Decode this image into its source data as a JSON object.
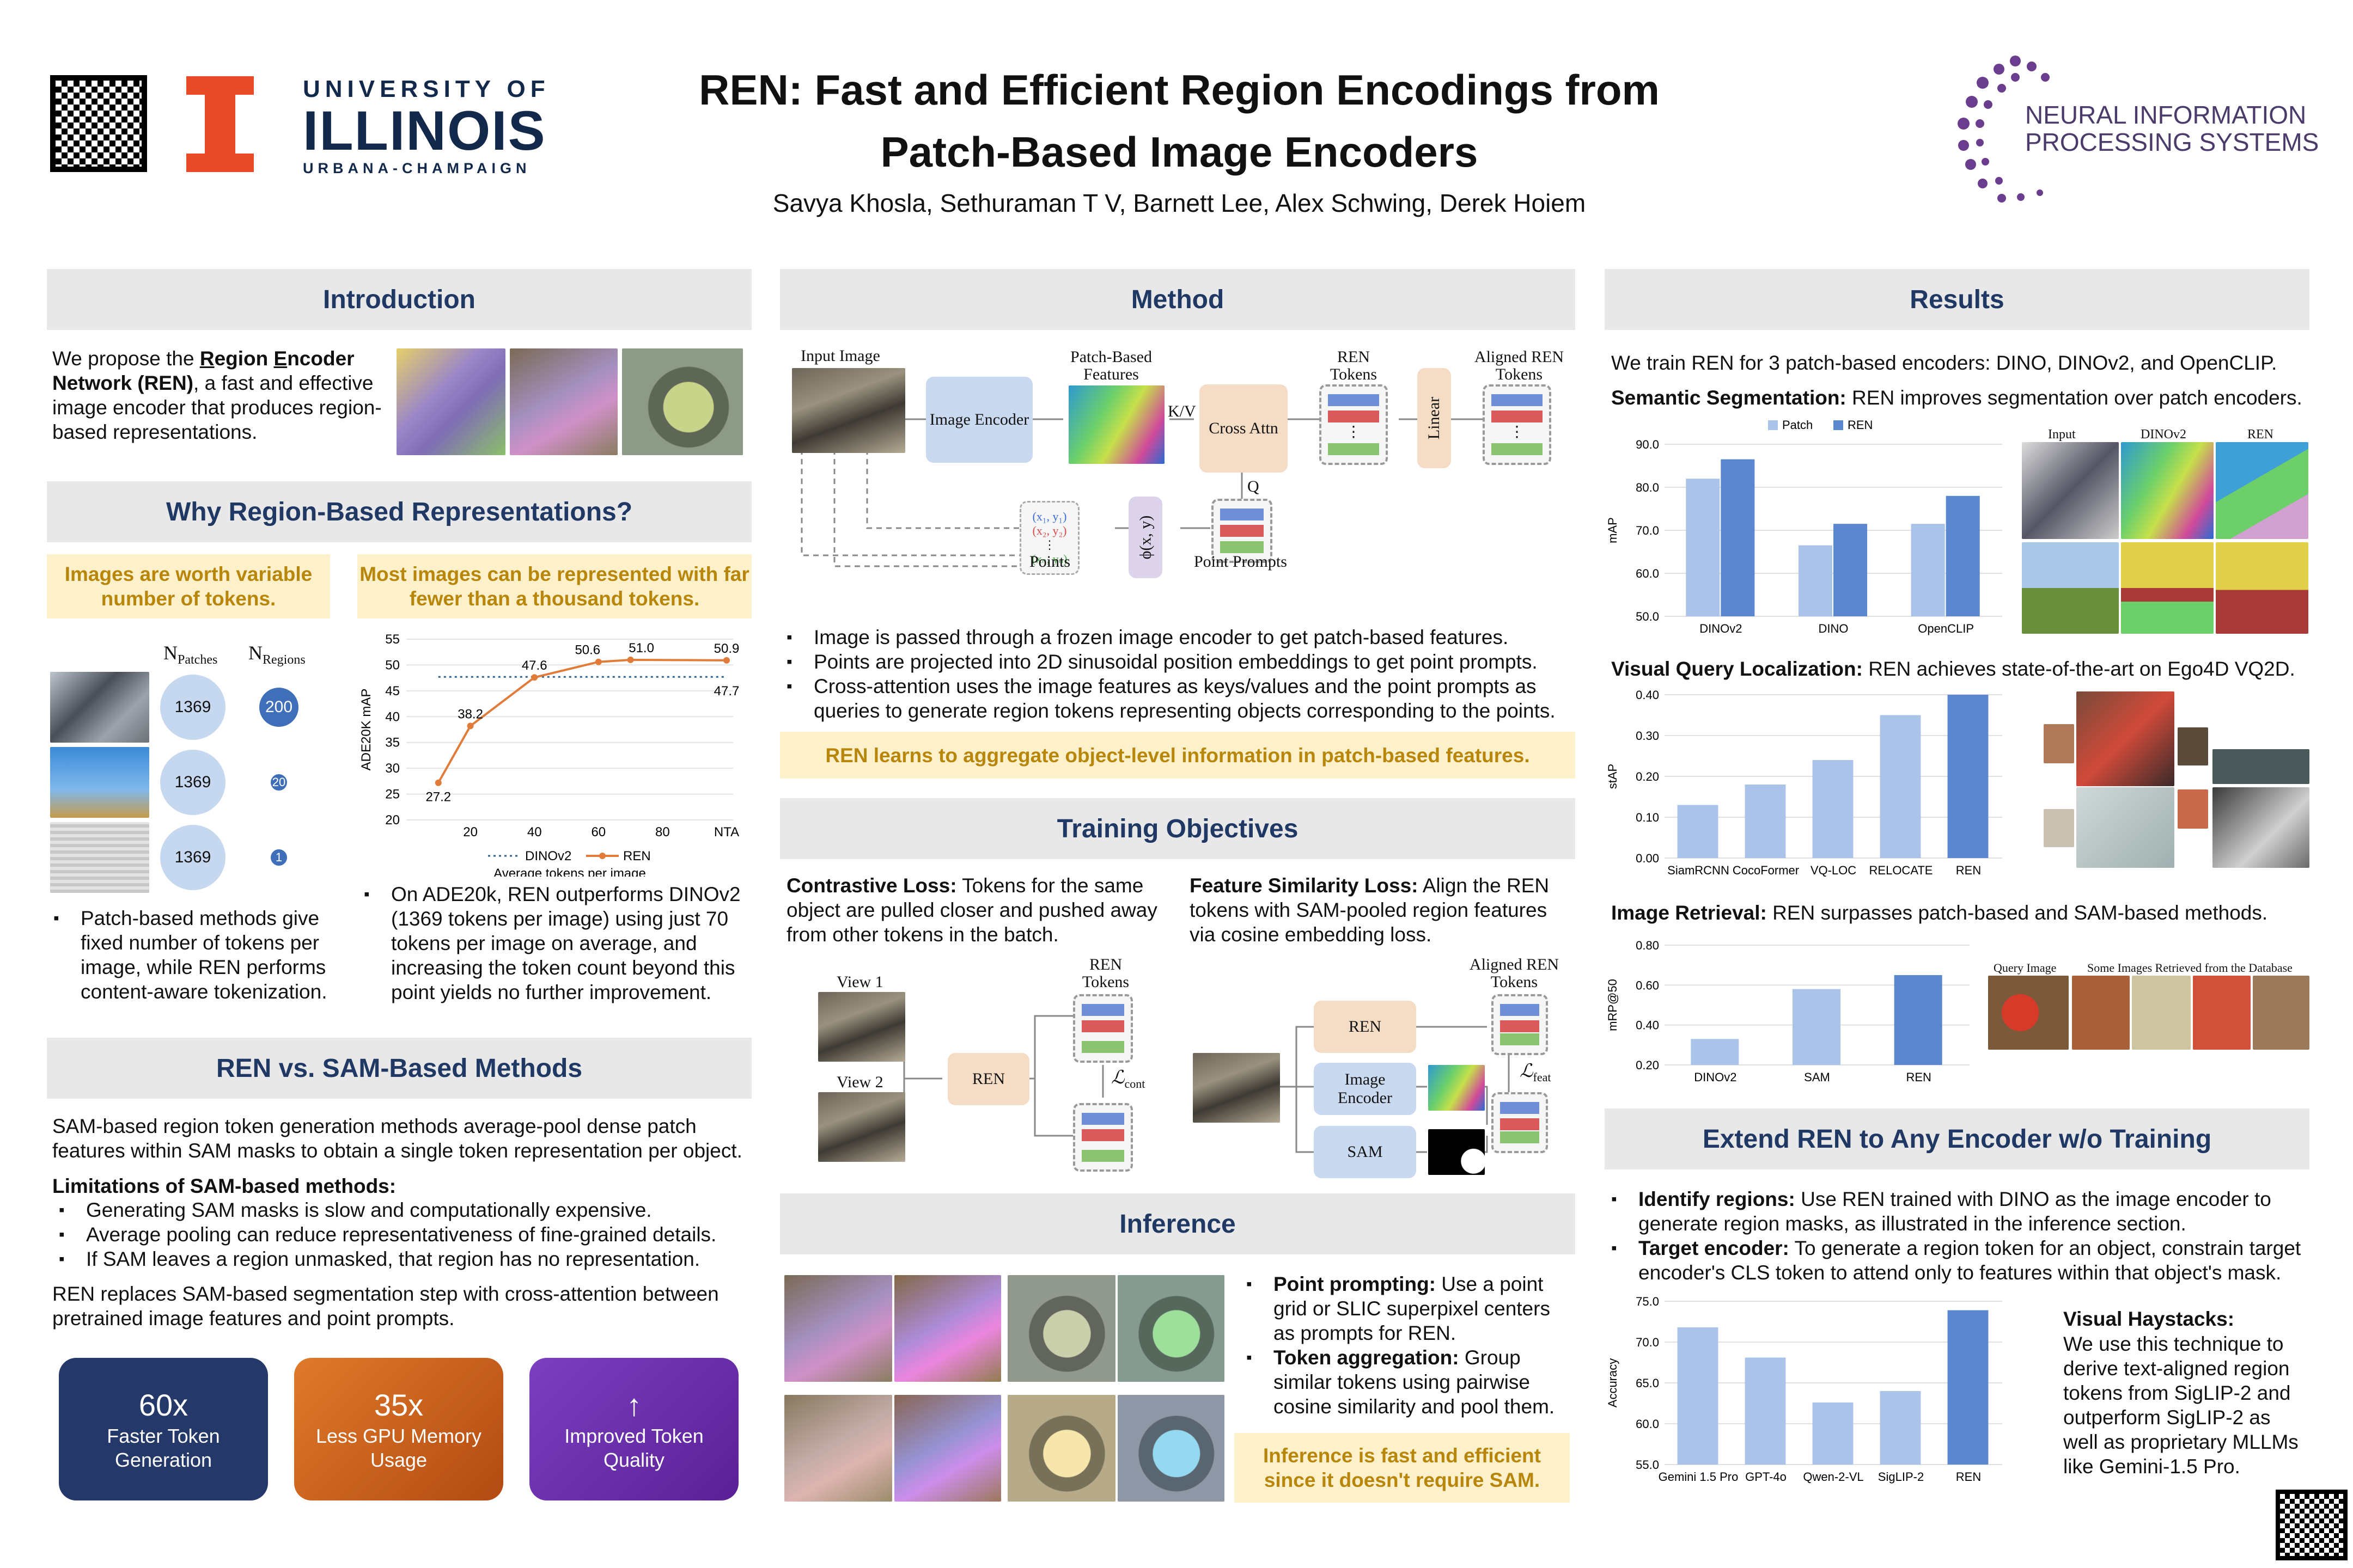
{
  "header": {
    "title_line1": "REN: Fast and Efficient Region Encodings from",
    "title_line2": "Patch-Based Image Encoders",
    "authors": "Savya Khosla, Sethuraman T V, Barnett Lee, Alex Schwing, Derek Hoiem",
    "uiuc_line1": "UNIVERSITY OF",
    "uiuc_line2": "ILLINOIS",
    "uiuc_line3": "URBANA-CHAMPAIGN",
    "neurips_line1": "NEURAL INFORMATION",
    "neurips_line2": "PROCESSING SYSTEMS",
    "uiuc_color": "#e84a27",
    "uiuc_navy": "#13294b",
    "neurips_color": "#6a3d8f"
  },
  "intro": {
    "heading": "Introduction",
    "text_pre": "We propose the ",
    "text_r": "R",
    "text_egion": "egion ",
    "text_e": "E",
    "text_ncoder": "ncoder",
    "text_net": "Network (REN)",
    "text_post": ", a fast and effective image encoder that produces region-based representations."
  },
  "why": {
    "heading": "Why Region-Based Representations?",
    "callout_left": "Images are worth variable number of tokens.",
    "callout_right": "Most images can be represented with far fewer than a thousand tokens.",
    "col_patches": "N",
    "col_patches_sub": "Patches",
    "col_regions": "N",
    "col_regions_sub": "Regions",
    "rows": [
      {
        "patches": "1369",
        "regions": "200"
      },
      {
        "patches": "1369",
        "regions": "20"
      },
      {
        "patches": "1369",
        "regions": "1"
      }
    ],
    "bullet_left": "Patch-based methods give fixed number of tokens per image, while REN performs content-aware tokenization.",
    "bullet_right": "On ADE20k, REN outperforms DINOv2 (1369 tokens per image) using just 70 tokens per image on average, and increasing the token count beyond this point yields no further improvement."
  },
  "sam": {
    "heading": "REN vs. SAM-Based Methods",
    "intro": "SAM-based region token generation methods average-pool dense patch features within SAM masks to obtain a single token representation per object.",
    "limits_title": "Limitations of SAM-based methods:",
    "limits": [
      "Generating SAM masks is slow and computationally expensive.",
      "Average pooling can reduce representativeness of fine-grained details.",
      "If SAM leaves a region unmasked, that region has no representation."
    ],
    "closing": "REN replaces SAM-based segmentation step with cross-attention between pretrained image features and point prompts.",
    "cards": [
      {
        "big": "60x",
        "small": "Faster Token Generation",
        "color": "#24386a"
      },
      {
        "big": "35x",
        "small": "Less GPU Memory Usage",
        "color": "#d2691e"
      },
      {
        "big": "↑",
        "small": "Improved Token Quality",
        "color": "#6b2fa8"
      }
    ]
  },
  "method": {
    "heading": "Method",
    "diagram": {
      "input_image": "Input Image",
      "image_encoder": "Image Encoder",
      "patch_features": "Patch-Based Features",
      "kv": "K/V",
      "cross_attn": "Cross Attn",
      "ren_tokens": "REN Tokens",
      "linear": "Linear",
      "aligned": "Aligned REN Tokens",
      "q": "Q",
      "points": "Points",
      "phi": "ϕ(x, y)",
      "point_prompts": "Point Prompts",
      "coords": [
        "(x₁, y₁)",
        "(x₂, y₂)",
        "(xₙ, yₙ)"
      ],
      "dots": "⋮"
    },
    "bullets": [
      "Image is passed through a frozen image encoder to get patch-based features.",
      "Points are projected into 2D sinusoidal position embeddings to get point prompts.",
      "Cross-attention uses the image features as keys/values and the point prompts as queries to generate region tokens representing objects corresponding to the points."
    ],
    "callout": "REN learns to aggregate object-level information in patch-based features."
  },
  "training": {
    "heading": "Training Objectives",
    "contrastive_title": "Contrastive Loss:",
    "contrastive_text": " Tokens for the same object are pulled closer and pushed away from other tokens in the batch.",
    "feature_title": "Feature Similarity Loss:",
    "feature_text": " Align the REN tokens with SAM-pooled region features via cosine embedding loss.",
    "view1": "View 1",
    "view2": "View 2",
    "ren": "REN",
    "ren_tokens": "REN Tokens",
    "l_cont": "ℒ",
    "l_cont_sub": "cont",
    "aligned": "Aligned REN Tokens",
    "image_encoder": "Image Encoder",
    "sam": "SAM",
    "l_feat": "ℒ",
    "l_feat_sub": "feat"
  },
  "inference": {
    "heading": "Inference",
    "b1_title": "Point prompting:",
    "b1_text": " Use a point grid or SLIC superpixel centers as prompts for REN.",
    "b2_title": "Token aggregation:",
    "b2_text": " Group similar tokens using pairwise cosine similarity and pool them.",
    "callout": "Inference is fast and efficient since it doesn't require SAM."
  },
  "results": {
    "heading": "Results",
    "intro": "We train REN for 3 patch-based encoders: DINO, DINOv2, and OpenCLIP.",
    "seg_title": "Semantic Segmentation:",
    "seg_text": " REN improves segmentation over patch encoders.",
    "seg_headers": [
      "Input",
      "DINOv2",
      "REN"
    ],
    "vq_title": "Visual Query Localization:",
    "vq_text": " REN achieves state-of-the-art on Ego4D VQ2D.",
    "ret_title": "Image Retrieval:",
    "ret_text": " REN surpasses patch-based and SAM-based methods.",
    "ret_query": "Query Image",
    "ret_db": "Some Images Retrieved from the Database"
  },
  "extend": {
    "heading": "Extend REN to Any Encoder w/o Training",
    "b1_title": "Identify regions:",
    "b1_text": " Use REN trained with DINO as the image encoder to generate region masks, as illustrated in the inference section.",
    "b2_title": "Target encoder:",
    "b2_text": " To generate a region token for an object, constrain target encoder's CLS token to attend only to features within that object's mask.",
    "vh_title": "Visual Haystacks:",
    "vh_text": "We use this technique to derive text-aligned region tokens from SigLIP-2 and outperform SigLIP-2 as well as proprietary MLLMs like Gemini-1.5 Pro."
  },
  "chart_data": [
    {
      "id": "ade20k",
      "type": "line",
      "xlabel": "Average tokens per image",
      "ylabel": "ADE20K mAP",
      "x": [
        "10",
        "20",
        "40",
        "60",
        "70",
        "NTA"
      ],
      "xticks": [
        "",
        "20",
        "40",
        "60",
        "80",
        "NTA"
      ],
      "ylim": [
        20,
        55
      ],
      "yticks": [
        "20",
        "25",
        "30",
        "35",
        "40",
        "45",
        "50",
        "55"
      ],
      "series": [
        {
          "name": "REN",
          "values": [
            27.2,
            38.2,
            47.6,
            50.6,
            51.0,
            50.9
          ],
          "labels": [
            "27.2",
            "38.2",
            "47.6",
            "50.6",
            "51.0",
            "50.9"
          ],
          "color": "#e07b39"
        },
        {
          "name": "DINOv2",
          "values": [
            47.7,
            47.7,
            47.7,
            47.7,
            47.7,
            47.7
          ],
          "label": "47.7",
          "color": "#2e5f8a",
          "style": "dotted"
        }
      ],
      "legend": "bottom"
    },
    {
      "id": "segmentation",
      "type": "bar",
      "categories": [
        "DINOv2",
        "DINO",
        "OpenCLIP"
      ],
      "ylabel": "mAP",
      "ylim": [
        50,
        90
      ],
      "yticks": [
        "50.0",
        "60.0",
        "70.0",
        "80.0",
        "90.0"
      ],
      "series": [
        {
          "name": "Patch",
          "values": [
            82.0,
            66.5,
            71.5
          ],
          "color": "#a9c4e8"
        },
        {
          "name": "REN",
          "values": [
            86.5,
            71.5,
            78.0
          ],
          "color": "#5b87cf"
        }
      ],
      "legend": "top"
    },
    {
      "id": "vq2d",
      "type": "bar",
      "categories": [
        "SiamRCNN",
        "CocoFormer",
        "VQ-LOC",
        "RELOCATE",
        "REN"
      ],
      "ylabel": "stAP",
      "ylim": [
        0,
        0.4
      ],
      "yticks": [
        "0.00",
        "0.10",
        "0.20",
        "0.30",
        "0.40"
      ],
      "values": [
        0.13,
        0.18,
        0.24,
        0.35,
        0.4
      ],
      "colors": [
        "#a9c4e8",
        "#a9c4e8",
        "#a9c4e8",
        "#a9c4e8",
        "#5b87cf"
      ]
    },
    {
      "id": "retrieval",
      "type": "bar",
      "categories": [
        "DINOv2",
        "SAM",
        "REN"
      ],
      "ylabel": "mRP@50",
      "ylim": [
        0.2,
        0.8
      ],
      "yticks": [
        "0.20",
        "0.40",
        "0.60",
        "0.80"
      ],
      "values": [
        0.33,
        0.58,
        0.65
      ],
      "colors": [
        "#a9c4e8",
        "#a9c4e8",
        "#5b87cf"
      ]
    },
    {
      "id": "haystacks",
      "type": "bar",
      "categories": [
        "Gemini 1.5 Pro",
        "GPT-4o",
        "Qwen-2-VL",
        "SigLIP-2",
        "REN"
      ],
      "ylabel": "Accuracy",
      "ylim": [
        55,
        75
      ],
      "yticks": [
        "55.0",
        "60.0",
        "65.0",
        "70.0",
        "75.0"
      ],
      "values": [
        71.8,
        68.1,
        62.6,
        64.0,
        73.9
      ],
      "colors": [
        "#a9c4e8",
        "#a9c4e8",
        "#a9c4e8",
        "#a9c4e8",
        "#5b87cf"
      ]
    }
  ]
}
